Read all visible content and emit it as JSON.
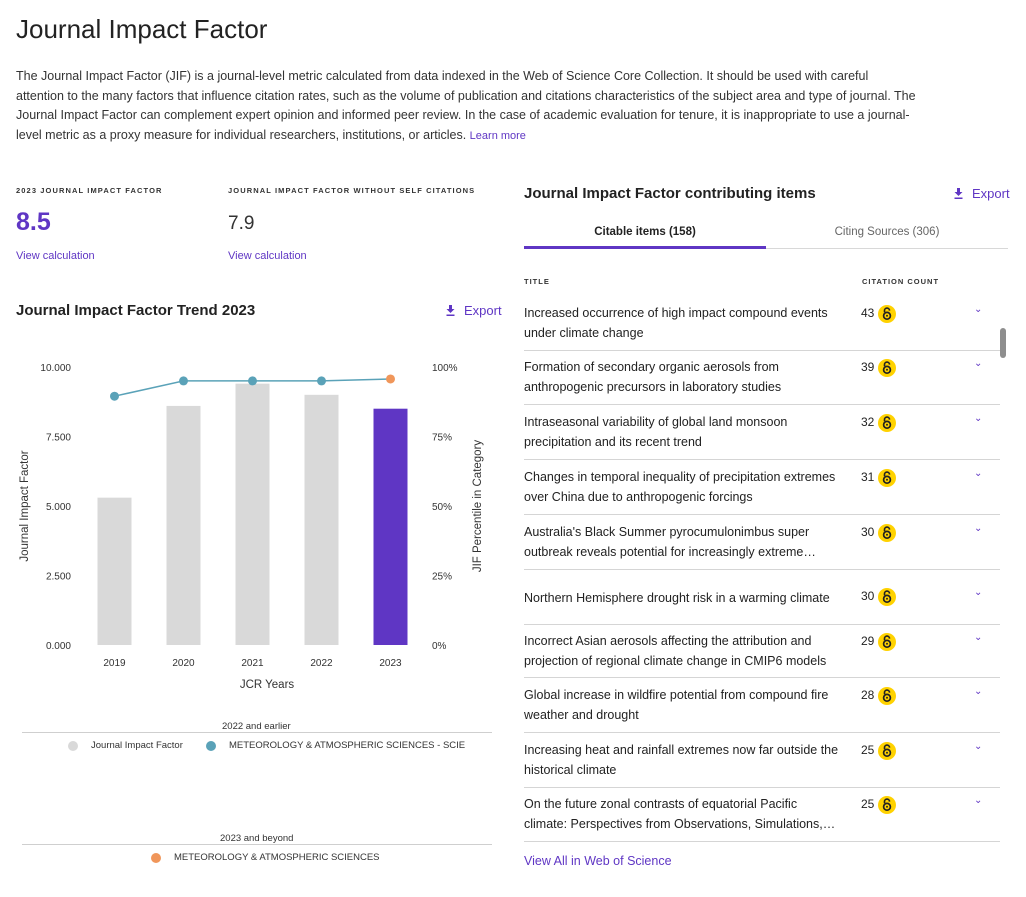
{
  "page": {
    "title": "Journal Impact Factor",
    "intro": "The Journal Impact Factor (JIF) is a journal-level metric calculated from data indexed in the Web of Science Core Collection. It should be used with careful attention to the many factors that influence citation rates, such as the volume of publication and citations characteristics of the subject area and type of journal. The Journal Impact Factor can complement expert opinion and informed peer review. In the case of academic evaluation for tenure, it is inappropriate to use a journal-level metric as a proxy measure for individual researchers, institutions, or articles.",
    "learn_more": "Learn more"
  },
  "metrics": {
    "jif": {
      "label": "2023 JOURNAL IMPACT FACTOR",
      "value": "8.5",
      "link": "View calculation"
    },
    "jif_no_self": {
      "label": "JOURNAL IMPACT FACTOR WITHOUT SELF CITATIONS",
      "value": "7.9",
      "link": "View calculation"
    }
  },
  "trend": {
    "title": "Journal Impact Factor Trend 2023",
    "export": "Export"
  },
  "colors": {
    "accent": "#5f36c4",
    "bar_gray": "#d9d9d9",
    "line_teal": "#5aa2b8",
    "dot_orange": "#f0965a",
    "oa_yellow": "#ffd200"
  },
  "chart_data": {
    "type": "bar",
    "categories": [
      "2019",
      "2020",
      "2021",
      "2022",
      "2023"
    ],
    "series": [
      {
        "name": "Journal Impact Factor",
        "values": [
          5.3,
          8.6,
          9.4,
          9.0,
          8.5
        ]
      },
      {
        "name": "METEOROLOGY & ATMOSPHERIC SCIENCES - SCIE",
        "type": "line",
        "axis": "right",
        "values": [
          89.5,
          95,
          95,
          95,
          null
        ]
      },
      {
        "name": "METEOROLOGY & ATMOSPHERIC SCIENCES",
        "type": "point",
        "axis": "right",
        "values": [
          null,
          null,
          null,
          null,
          95.7
        ]
      }
    ],
    "xlabel": "JCR Years",
    "ylabel": "Journal Impact Factor",
    "y2label": "JIF Percentile in Category",
    "ylim": [
      0,
      10
    ],
    "y2lim": [
      0,
      100
    ],
    "y_ticks": [
      "0.000",
      "2.500",
      "5.000",
      "7.500",
      "10.000"
    ],
    "y2_ticks": [
      "0%",
      "25%",
      "50%",
      "75%",
      "100%"
    ],
    "highlight_category": "2023",
    "grid": false,
    "legend_groups": [
      {
        "label": "2022 and earlier",
        "entries": [
          "Journal Impact Factor",
          "METEOROLOGY & ATMOSPHERIC SCIENCES - SCIE"
        ]
      },
      {
        "label": "2023 and beyond",
        "entries": [
          "METEOROLOGY & ATMOSPHERIC SCIENCES"
        ]
      }
    ]
  },
  "legend": {
    "group1_label": "2022 and earlier",
    "group1_item1": "Journal Impact Factor",
    "group1_item2": "METEOROLOGY & ATMOSPHERIC SCIENCES - SCIE",
    "group2_label": "2023 and beyond",
    "group2_item1": "METEOROLOGY & ATMOSPHERIC SCIENCES"
  },
  "contrib": {
    "title": "Journal Impact Factor contributing items",
    "export": "Export",
    "tabs": [
      {
        "label": "Citable items (158)",
        "active": true
      },
      {
        "label": "Citing Sources (306)",
        "active": false
      }
    ],
    "col_title": "TITLE",
    "col_count": "CITATION COUNT",
    "items": [
      {
        "title": "Increased occurrence of high impact compound events under climate change",
        "count": "43"
      },
      {
        "title": "Formation of secondary organic aerosols from anthropogenic precursors in laboratory studies",
        "count": "39"
      },
      {
        "title": "Intraseasonal variability of global land monsoon precipitation and its recent trend",
        "count": "32"
      },
      {
        "title": "Changes in temporal inequality of precipitation extremes over China due to anthropogenic forcings",
        "count": "31"
      },
      {
        "title": "Australia's Black Summer pyrocumulonimbus super outbreak reveals potential for increasingly extreme volcano-like stratospheric impacts",
        "count": "30"
      },
      {
        "title": "Northern Hemisphere drought risk in a warming climate",
        "count": "30"
      },
      {
        "title": "Incorrect Asian aerosols affecting the attribution and projection of regional climate change in CMIP6 models",
        "count": "29"
      },
      {
        "title": "Global increase in wildfire potential from compound fire weather and drought",
        "count": "28"
      },
      {
        "title": "Increasing heat and rainfall extremes now far outside the historical climate",
        "count": "25"
      },
      {
        "title": "On the future zonal contrasts of equatorial Pacific climate: Perspectives from Observations, Simulations, and Theories",
        "count": "25"
      }
    ],
    "view_all": "View All in Web of Science",
    "chevron_icon": "chevron-down-icon",
    "oa_icon": "open-access-icon"
  }
}
